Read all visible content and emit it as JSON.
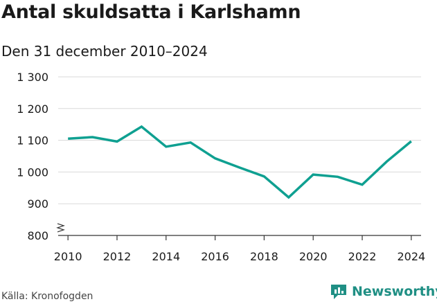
{
  "header": {
    "title": "Antal skuldsatta i Karlshamn",
    "subtitle": "Den 31 december 2010–2024"
  },
  "footer": {
    "source": "Källa: Kronofogden",
    "brand": "Newsworthy"
  },
  "colors": {
    "line": "#0fa091",
    "grid": "#d9d9d9",
    "axis": "#333333",
    "brand": "#1f8f84"
  },
  "chart_data": {
    "type": "line",
    "title": "Antal skuldsatta i Karlshamn",
    "subtitle": "Den 31 december 2010–2024",
    "x": [
      2010,
      2011,
      2012,
      2013,
      2014,
      2015,
      2016,
      2017,
      2018,
      2019,
      2020,
      2021,
      2022,
      2023,
      2024
    ],
    "series": [
      {
        "values": [
          1105,
          1110,
          1096,
          1143,
          1080,
          1093,
          1043,
          1014,
          986,
          920,
          992,
          985,
          960,
          1033,
          1097
        ]
      }
    ],
    "x_ticks": [
      2010,
      2012,
      2014,
      2016,
      2018,
      2020,
      2022,
      2024
    ],
    "x_tick_labels": [
      "2010",
      "2012",
      "2014",
      "2016",
      "2018",
      "2020",
      "2022",
      "2024"
    ],
    "y_ticks": [
      800,
      900,
      1000,
      1100,
      1200,
      1300
    ],
    "y_tick_labels": [
      "800",
      "900",
      "1 000",
      "1 100",
      "1 200",
      "1 300"
    ],
    "xlim": [
      2009.6,
      2024.4
    ],
    "ylim": [
      800,
      1300
    ],
    "y_axis_break": true,
    "grid": "horizontal",
    "xlabel": "",
    "ylabel": ""
  }
}
